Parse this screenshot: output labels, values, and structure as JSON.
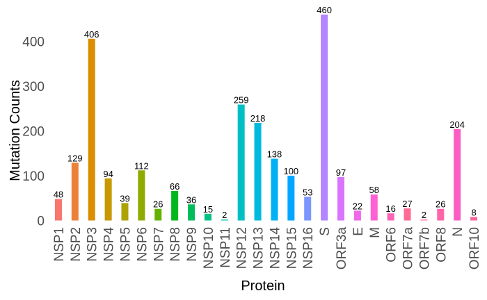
{
  "chart_data": {
    "type": "bar",
    "title": "",
    "xlabel": "Protein",
    "ylabel": "Mutation Counts",
    "ylim": [
      0,
      460
    ],
    "yticks": [
      0,
      100,
      200,
      300,
      400
    ],
    "grid": false,
    "legend": "none",
    "categories": [
      "NSP1",
      "NSP2",
      "NSP3",
      "NSP4",
      "NSP5",
      "NSP6",
      "NSP7",
      "NSP8",
      "NSP9",
      "NSP10",
      "NSP11",
      "NSP12",
      "NSP13",
      "NSP14",
      "NSP15",
      "NSP16",
      "S",
      "ORF3a",
      "E",
      "M",
      "ORF6",
      "ORF7a",
      "ORF7b",
      "ORF8",
      "N",
      "ORF10"
    ],
    "values": [
      48,
      129,
      406,
      94,
      39,
      112,
      26,
      66,
      36,
      15,
      2,
      259,
      218,
      138,
      100,
      53,
      460,
      97,
      22,
      58,
      16,
      27,
      2,
      26,
      204,
      8
    ],
    "colors": [
      "#F8766D",
      "#EC8239",
      "#DB8E00",
      "#C79800",
      "#AEA200",
      "#8FAA00",
      "#64B200",
      "#00B81B",
      "#00BD5C",
      "#00C085",
      "#00C1A7",
      "#00BFC4",
      "#00BADE",
      "#00B2F3",
      "#00A6FF",
      "#7C96FF",
      "#B385FF",
      "#D874FD",
      "#EF67EB",
      "#FD61D3",
      "#FF63B6",
      "#FF6B94",
      "#FF6C91",
      "#FF66A8",
      "#FB5EC2",
      "#F8679C"
    ]
  }
}
